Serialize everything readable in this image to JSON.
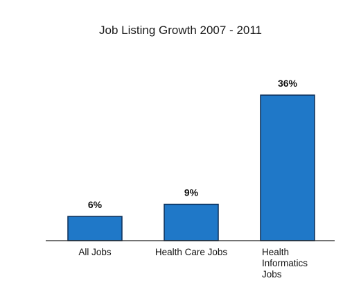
{
  "chart_data": {
    "type": "bar",
    "title": "Job Listing Growth 2007 - 2011",
    "categories": [
      "All Jobs",
      "Health Care Jobs",
      "Health Informatics Jobs"
    ],
    "category_lines": [
      [
        "All Jobs"
      ],
      [
        "Health Care Jobs"
      ],
      [
        "Health",
        "Informatics",
        "Jobs"
      ]
    ],
    "values": [
      6,
      9,
      36
    ],
    "value_labels": [
      "6%",
      "9%",
      "36%"
    ],
    "ylim": [
      0,
      40
    ],
    "xlabel": "",
    "ylabel": "",
    "grid": false,
    "legend": "none",
    "bar_color": "#1f78c8",
    "bar_edge_color": "#0b2d55"
  }
}
